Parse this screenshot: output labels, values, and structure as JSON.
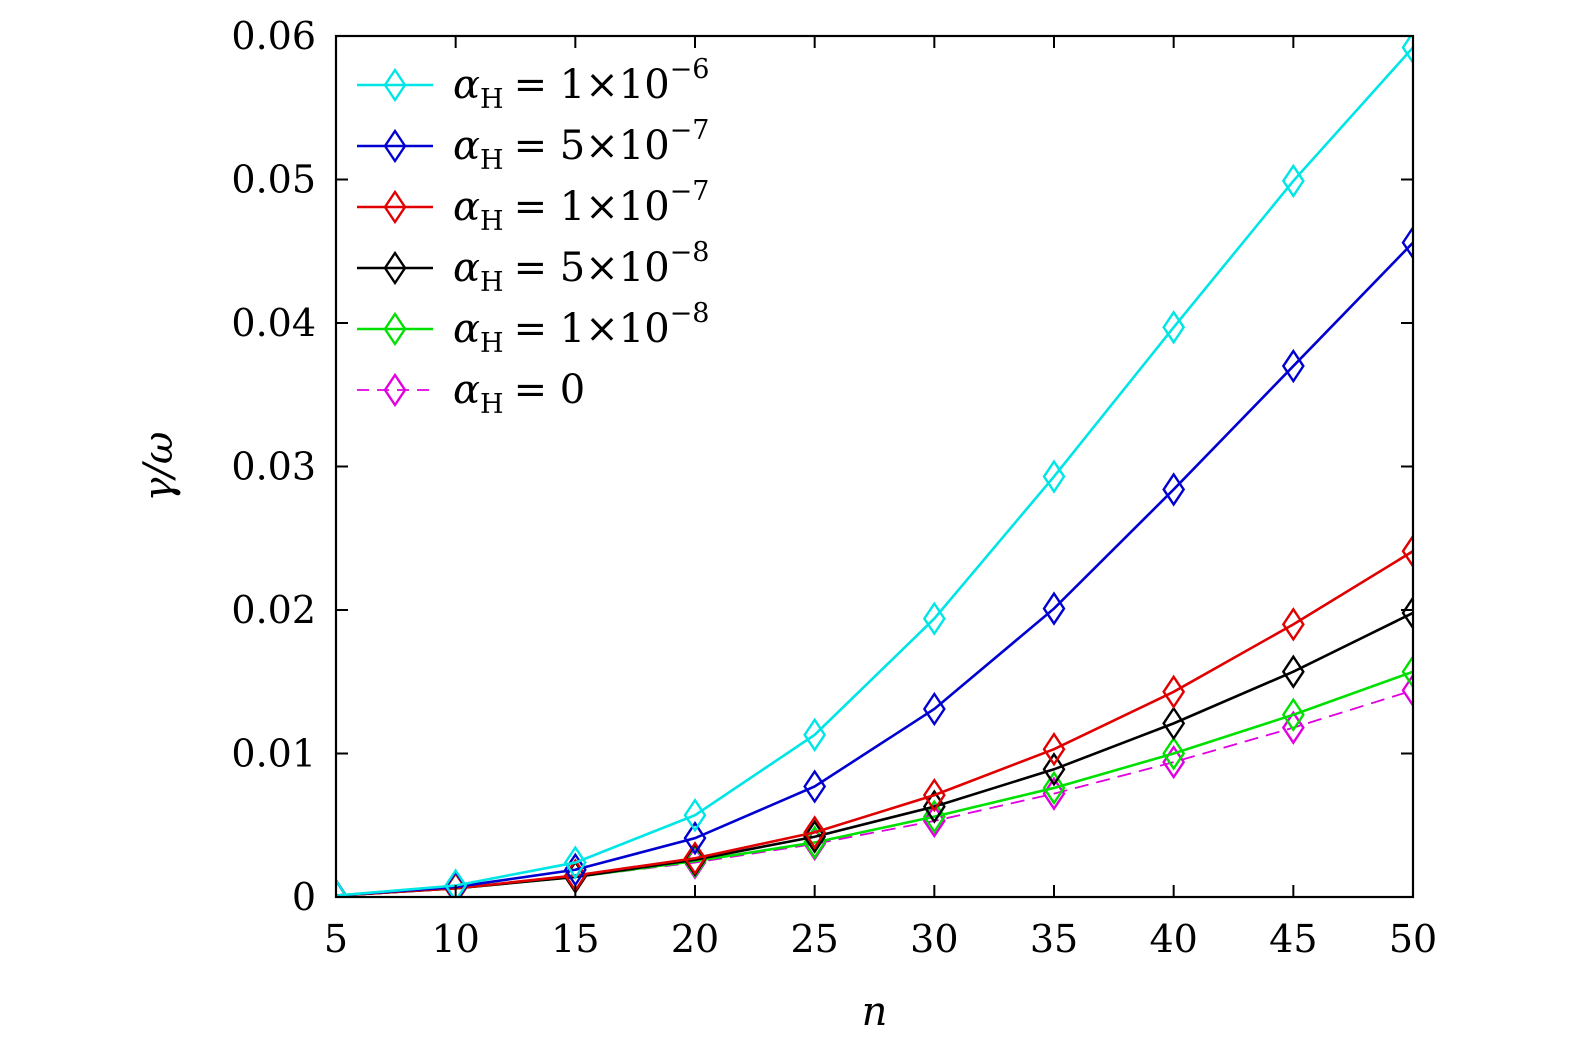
{
  "chart_data": {
    "type": "line",
    "xlabel": "n",
    "ylabel": "γ/ω",
    "xlim": [
      5,
      50
    ],
    "ylim": [
      0,
      0.06
    ],
    "x": [
      5,
      10,
      15,
      20,
      25,
      30,
      35,
      40,
      45,
      50
    ],
    "x_ticks": [
      "5",
      "10",
      "15",
      "20",
      "25",
      "30",
      "35",
      "40",
      "45",
      "50"
    ],
    "y_ticks": [
      "0",
      "0.01",
      "0.02",
      "0.03",
      "0.04",
      "0.05",
      "0.06"
    ],
    "y_tick_values": [
      0,
      0.01,
      0.02,
      0.03,
      0.04,
      0.05,
      0.06
    ],
    "grid": false,
    "legend_position": "top-left",
    "marker": "diamond",
    "series": [
      {
        "name": "αH = 1×10−6",
        "legend": {
          "lhs": "α",
          "sub": "H",
          "rhs": "= 1×10",
          "sup": "−6"
        },
        "color": "#00e5e5",
        "dashed": false,
        "values": [
          0.0001,
          0.0008,
          0.0024,
          0.0057,
          0.0113,
          0.0194,
          0.0293,
          0.0397,
          0.0499,
          0.0592
        ]
      },
      {
        "name": "αH = 5×10−7",
        "legend": {
          "lhs": "α",
          "sub": "H",
          "rhs": "= 5×10",
          "sup": "−7"
        },
        "color": "#0000d0",
        "dashed": false,
        "values": [
          0.0001,
          0.0007,
          0.0019,
          0.0041,
          0.0077,
          0.0131,
          0.0201,
          0.0284,
          0.037,
          0.0456
        ]
      },
      {
        "name": "αH = 1×10−7",
        "legend": {
          "lhs": "α",
          "sub": "H",
          "rhs": "= 1×10",
          "sup": "−7"
        },
        "color": "#e00000",
        "dashed": false,
        "values": [
          0.0001,
          0.0006,
          0.0015,
          0.0027,
          0.0045,
          0.0071,
          0.0103,
          0.0143,
          0.019,
          0.0241
        ]
      },
      {
        "name": "αH = 5×10−8",
        "legend": {
          "lhs": "α",
          "sub": "H",
          "rhs": "= 5×10",
          "sup": "−8"
        },
        "color": "#000000",
        "dashed": false,
        "values": [
          0.0001,
          0.0006,
          0.0014,
          0.0026,
          0.0042,
          0.0063,
          0.0089,
          0.0121,
          0.0157,
          0.0198
        ]
      },
      {
        "name": "αH = 1×10−8",
        "legend": {
          "lhs": "α",
          "sub": "H",
          "rhs": "= 1×10",
          "sup": "−8"
        },
        "color": "#00e000",
        "dashed": false,
        "values": [
          0.0001,
          0.0006,
          0.0014,
          0.0025,
          0.0038,
          0.0056,
          0.0076,
          0.01,
          0.0127,
          0.0157
        ]
      },
      {
        "name": "αH = 0",
        "legend": {
          "lhs": "α",
          "sub": "H",
          "rhs": "= 0",
          "sup": ""
        },
        "color": "#e000e0",
        "dashed": true,
        "values": [
          0.0001,
          0.0006,
          0.0014,
          0.0024,
          0.0037,
          0.0053,
          0.0072,
          0.0094,
          0.0118,
          0.0144
        ]
      }
    ]
  }
}
